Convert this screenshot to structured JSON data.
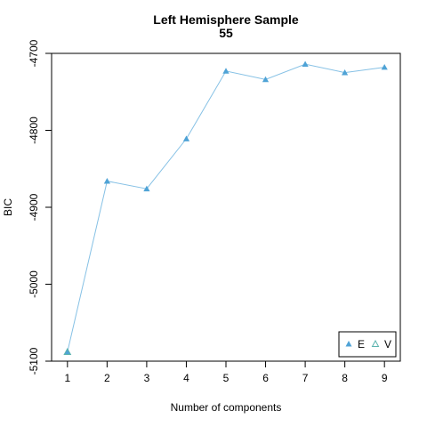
{
  "chart_data": {
    "type": "line",
    "title": [
      "Left Hemisphere Sample",
      "55"
    ],
    "xlabel": "Number of components",
    "ylabel": "BIC",
    "x": [
      1,
      2,
      3,
      4,
      5,
      6,
      7,
      8,
      9
    ],
    "xticks": [
      "1",
      "2",
      "3",
      "4",
      "5",
      "6",
      "7",
      "8",
      "9"
    ],
    "xlim": [
      0.6,
      9.4
    ],
    "yticks": [
      "-5100",
      "-5000",
      "-4900",
      "-4800",
      "-4700"
    ],
    "ylim": [
      -5100,
      -4700
    ],
    "grid": false,
    "legend_position": "bottom-right",
    "series": [
      {
        "name": "E",
        "marker": "filled-triangle",
        "color": "#4FA3D6",
        "line_color": "#86C1E5",
        "values": [
          -5088,
          -4866,
          -4876,
          -4811,
          -4723,
          -4734,
          -4714,
          -4725,
          -4718
        ]
      },
      {
        "name": "V",
        "marker": "open-triangle",
        "color": "#5BB3AE",
        "values": [
          -5088,
          null,
          null,
          null,
          null,
          null,
          null,
          null,
          null
        ]
      }
    ]
  }
}
